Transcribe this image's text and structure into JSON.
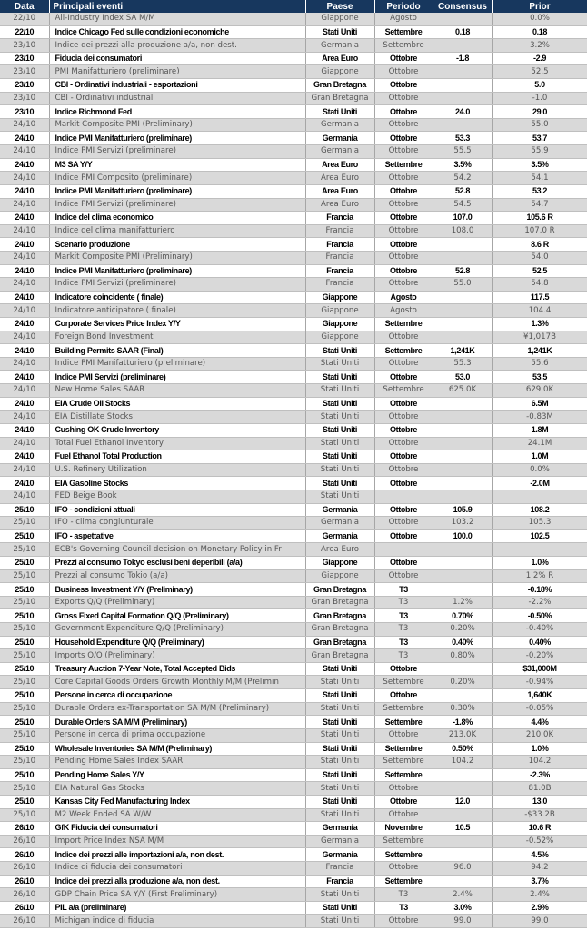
{
  "header": {
    "date": "Data",
    "event": "Principali eventi",
    "country": "Paese",
    "period": "Periodo",
    "consensus": "Consensus",
    "prior": "Prior"
  },
  "colors": {
    "header_bg": "#17375e",
    "shaded_row": "#d9d9d9"
  },
  "rows": [
    {
      "date": "22/10",
      "event": "All-Industry Index SA M/M",
      "country": "Giappone",
      "period": "Agosto",
      "consensus": "",
      "prior": "0.0%"
    },
    {
      "date": "22/10",
      "event": "Indice Chicago Fed sulle condizioni economiche",
      "country": "Stati Uniti",
      "period": "Settembre",
      "consensus": "0.18",
      "prior": "0.18"
    },
    {
      "date": "23/10",
      "event": "Indice dei prezzi alla produzione a/a, non dest.",
      "country": "Germania",
      "period": "Settembre",
      "consensus": "",
      "prior": "3.2%"
    },
    {
      "date": "23/10",
      "event": "Fiducia dei consumatori",
      "country": "Area Euro",
      "period": "Ottobre",
      "consensus": "-1.8",
      "prior": "-2.9"
    },
    {
      "date": "23/10",
      "event": "PMI Manifatturiero (preliminare)",
      "country": "Giappone",
      "period": "Ottobre",
      "consensus": "",
      "prior": "52.5"
    },
    {
      "date": "23/10",
      "event": "CBI - Ordinativi industriali - esportazioni",
      "country": "Gran Bretagna",
      "period": "Ottobre",
      "consensus": "",
      "prior": "5.0"
    },
    {
      "date": "23/10",
      "event": "CBI - Ordinativi industriali",
      "country": "Gran Bretagna",
      "period": "Ottobre",
      "consensus": "",
      "prior": "-1.0"
    },
    {
      "date": "23/10",
      "event": "Indice Richmond Fed",
      "country": "Stati Uniti",
      "period": "Ottobre",
      "consensus": "24.0",
      "prior": "29.0"
    },
    {
      "date": "24/10",
      "event": "Markit Composite PMI  (Preliminary)",
      "country": "Germania",
      "period": "Ottobre",
      "consensus": "",
      "prior": "55.0"
    },
    {
      "date": "24/10",
      "event": "Indice PMI Manifatturiero (preliminare)",
      "country": "Germania",
      "period": "Ottobre",
      "consensus": "53.3",
      "prior": "53.7"
    },
    {
      "date": "24/10",
      "event": "Indice PMI Servizi (preliminare)",
      "country": "Germania",
      "period": "Ottobre",
      "consensus": "55.5",
      "prior": "55.9"
    },
    {
      "date": "24/10",
      "event": "M3 SA Y/Y",
      "country": "Area Euro",
      "period": "Settembre",
      "consensus": "3.5%",
      "prior": "3.5%"
    },
    {
      "date": "24/10",
      "event": "Indice PMI Composito (preliminare)",
      "country": "Area Euro",
      "period": "Ottobre",
      "consensus": "54.2",
      "prior": "54.1"
    },
    {
      "date": "24/10",
      "event": "Indice PMI Manifatturiero (preliminare)",
      "country": "Area Euro",
      "period": "Ottobre",
      "consensus": "52.8",
      "prior": "53.2"
    },
    {
      "date": "24/10",
      "event": "Indice PMI Servizi (preliminare)",
      "country": "Area Euro",
      "period": "Ottobre",
      "consensus": "54.5",
      "prior": "54.7"
    },
    {
      "date": "24/10",
      "event": "Indice del clima economico",
      "country": "Francia",
      "period": "Ottobre",
      "consensus": "107.0",
      "prior": "105.6 R"
    },
    {
      "date": "24/10",
      "event": "Indice del clima manifatturiero",
      "country": "Francia",
      "period": "Ottobre",
      "consensus": "108.0",
      "prior": "107.0 R"
    },
    {
      "date": "24/10",
      "event": "Scenario produzione",
      "country": "Francia",
      "period": "Ottobre",
      "consensus": "",
      "prior": "8.6 R"
    },
    {
      "date": "24/10",
      "event": "Markit Composite PMI  (Preliminary)",
      "country": "Francia",
      "period": "Ottobre",
      "consensus": "",
      "prior": "54.0"
    },
    {
      "date": "24/10",
      "event": "Indice PMI Manifatturiero (preliminare)",
      "country": "Francia",
      "period": "Ottobre",
      "consensus": "52.8",
      "prior": "52.5"
    },
    {
      "date": "24/10",
      "event": "Indice PMI Servizi (preliminare)",
      "country": "Francia",
      "period": "Ottobre",
      "consensus": "55.0",
      "prior": "54.8"
    },
    {
      "date": "24/10",
      "event": "Indicatore coincidente ( finale)",
      "country": "Giappone",
      "period": "Agosto",
      "consensus": "",
      "prior": "117.5"
    },
    {
      "date": "24/10",
      "event": "Indicatore anticipatore ( finale)",
      "country": "Giappone",
      "period": "Agosto",
      "consensus": "",
      "prior": "104.4"
    },
    {
      "date": "24/10",
      "event": "Corporate Services Price Index Y/Y",
      "country": "Giappone",
      "period": "Settembre",
      "consensus": "",
      "prior": "1.3%"
    },
    {
      "date": "24/10",
      "event": "Foreign Bond Investment",
      "country": "Giappone",
      "period": "Ottobre",
      "consensus": "",
      "prior": "¥1,017B"
    },
    {
      "date": "24/10",
      "event": "Building Permits SAAR (Final)",
      "country": "Stati Uniti",
      "period": "Settembre",
      "consensus": "1,241K",
      "prior": "1,241K"
    },
    {
      "date": "24/10",
      "event": "Indice PMI Manifatturiero (preliminare)",
      "country": "Stati Uniti",
      "period": "Ottobre",
      "consensus": "55.3",
      "prior": "55.6"
    },
    {
      "date": "24/10",
      "event": "Indice PMI Servizi (preliminare)",
      "country": "Stati Uniti",
      "period": "Ottobre",
      "consensus": "53.0",
      "prior": "53.5"
    },
    {
      "date": "24/10",
      "event": "New Home Sales SAAR",
      "country": "Stati Uniti",
      "period": "Settembre",
      "consensus": "625.0K",
      "prior": "629.0K"
    },
    {
      "date": "24/10",
      "event": "EIA Crude Oil Stocks",
      "country": "Stati Uniti",
      "period": "Ottobre",
      "consensus": "",
      "prior": "6.5M"
    },
    {
      "date": "24/10",
      "event": "EIA Distillate Stocks",
      "country": "Stati Uniti",
      "period": "Ottobre",
      "consensus": "",
      "prior": "-0.83M"
    },
    {
      "date": "24/10",
      "event": "Cushing OK Crude Inventory",
      "country": "Stati Uniti",
      "period": "Ottobre",
      "consensus": "",
      "prior": "1.8M"
    },
    {
      "date": "24/10",
      "event": "Total Fuel Ethanol Inventory",
      "country": "Stati Uniti",
      "period": "Ottobre",
      "consensus": "",
      "prior": "24.1M"
    },
    {
      "date": "24/10",
      "event": "Fuel Ethanol Total Production",
      "country": "Stati Uniti",
      "period": "Ottobre",
      "consensus": "",
      "prior": "1.0M"
    },
    {
      "date": "24/10",
      "event": "U.S. Refinery Utilization",
      "country": "Stati Uniti",
      "period": "Ottobre",
      "consensus": "",
      "prior": "0.0%"
    },
    {
      "date": "24/10",
      "event": "EIA Gasoline Stocks",
      "country": "Stati Uniti",
      "period": "Ottobre",
      "consensus": "",
      "prior": "-2.0M"
    },
    {
      "date": "24/10",
      "event": "FED Beige Book",
      "country": "Stati Uniti",
      "period": "",
      "consensus": "",
      "prior": ""
    },
    {
      "date": "25/10",
      "event": "IFO - condizioni attuali",
      "country": "Germania",
      "period": "Ottobre",
      "consensus": "105.9",
      "prior": "108.2"
    },
    {
      "date": "25/10",
      "event": "IFO - clima congiunturale",
      "country": "Germania",
      "period": "Ottobre",
      "consensus": "103.2",
      "prior": "105.3"
    },
    {
      "date": "25/10",
      "event": "IFO - aspettative",
      "country": "Germania",
      "period": "Ottobre",
      "consensus": "100.0",
      "prior": "102.5"
    },
    {
      "date": "25/10",
      "event": "ECB's Governing Council decision on Monetary Policy in Fr",
      "country": "Area Euro",
      "period": "",
      "consensus": "",
      "prior": ""
    },
    {
      "date": "25/10",
      "event": "Prezzi al consumo Tokyo esclusi beni deperibili (a/a)",
      "country": "Giappone",
      "period": "Ottobre",
      "consensus": "",
      "prior": "1.0%"
    },
    {
      "date": "25/10",
      "event": "Prezzi al consumo Tokio (a/a)",
      "country": "Giappone",
      "period": "Ottobre",
      "consensus": "",
      "prior": "1.2% R"
    },
    {
      "date": "25/10",
      "event": "Business Investment Y/Y (Preliminary)",
      "country": "Gran Bretagna",
      "period": "T3",
      "consensus": "",
      "prior": "-0.18%"
    },
    {
      "date": "25/10",
      "event": "Exports Q/Q (Preliminary)",
      "country": "Gran Bretagna",
      "period": "T3",
      "consensus": "1.2%",
      "prior": "-2.2%"
    },
    {
      "date": "25/10",
      "event": "Gross Fixed Capital Formation Q/Q (Preliminary)",
      "country": "Gran Bretagna",
      "period": "T3",
      "consensus": "0.70%",
      "prior": "-0.50%"
    },
    {
      "date": "25/10",
      "event": "Government Expenditure  Q/Q (Preliminary)",
      "country": "Gran Bretagna",
      "period": "T3",
      "consensus": "0.20%",
      "prior": "-0.40%"
    },
    {
      "date": "25/10",
      "event": "Household Expenditure Q/Q (Preliminary)",
      "country": "Gran Bretagna",
      "period": "T3",
      "consensus": "0.40%",
      "prior": "0.40%"
    },
    {
      "date": "25/10",
      "event": "Imports Q/Q (Preliminary)",
      "country": "Gran Bretagna",
      "period": "T3",
      "consensus": "0.80%",
      "prior": "-0.20%"
    },
    {
      "date": "25/10",
      "event": "Treasury Auction 7-Year Note, Total Accepted Bids",
      "country": "Stati Uniti",
      "period": "Ottobre",
      "consensus": "",
      "prior": "$31,000M"
    },
    {
      "date": "25/10",
      "event": "Core Capital Goods Orders Growth Monthly M/M (Prelimin",
      "country": "Stati Uniti",
      "period": "Settembre",
      "consensus": "0.20%",
      "prior": "-0.94%"
    },
    {
      "date": "25/10",
      "event": "Persone in cerca di occupazione",
      "country": "Stati Uniti",
      "period": "Ottobre",
      "consensus": "",
      "prior": "1,640K"
    },
    {
      "date": "25/10",
      "event": "Durable Orders ex-Transportation SA M/M (Preliminary)",
      "country": "Stati Uniti",
      "period": "Settembre",
      "consensus": "0.30%",
      "prior": "-0.05%"
    },
    {
      "date": "25/10",
      "event": "Durable Orders SA M/M (Preliminary)",
      "country": "Stati Uniti",
      "period": "Settembre",
      "consensus": "-1.8%",
      "prior": "4.4%"
    },
    {
      "date": "25/10",
      "event": "Persone in cerca di prima occupazione",
      "country": "Stati Uniti",
      "period": "Ottobre",
      "consensus": "213.0K",
      "prior": "210.0K"
    },
    {
      "date": "25/10",
      "event": "Wholesale Inventories SA M/M (Preliminary)",
      "country": "Stati Uniti",
      "period": "Settembre",
      "consensus": "0.50%",
      "prior": "1.0%"
    },
    {
      "date": "25/10",
      "event": "Pending Home Sales Index SAAR",
      "country": "Stati Uniti",
      "period": "Settembre",
      "consensus": "104.2",
      "prior": "104.2"
    },
    {
      "date": "25/10",
      "event": "Pending Home Sales Y/Y",
      "country": "Stati Uniti",
      "period": "Settembre",
      "consensus": "",
      "prior": "-2.3%"
    },
    {
      "date": "25/10",
      "event": "EIA Natural Gas Stocks",
      "country": "Stati Uniti",
      "period": "Ottobre",
      "consensus": "",
      "prior": "81.0B"
    },
    {
      "date": "25/10",
      "event": "Kansas City Fed Manufacturing Index",
      "country": "Stati Uniti",
      "period": "Ottobre",
      "consensus": "12.0",
      "prior": "13.0"
    },
    {
      "date": "25/10",
      "event": "M2 Week Ended SA W/W",
      "country": "Stati Uniti",
      "period": "Ottobre",
      "consensus": "",
      "prior": "-$33.2B"
    },
    {
      "date": "26/10",
      "event": "GfK Fiducia dei consumatori",
      "country": "Germania",
      "period": "Novembre",
      "consensus": "10.5",
      "prior": "10.6 R"
    },
    {
      "date": "26/10",
      "event": "Import Price Index NSA M/M",
      "country": "Germania",
      "period": "Settembre",
      "consensus": "",
      "prior": "-0.52%"
    },
    {
      "date": "26/10",
      "event": "Indice dei prezzi alle importazioni a/a, non dest.",
      "country": "Germania",
      "period": "Settembre",
      "consensus": "",
      "prior": "4.5%"
    },
    {
      "date": "26/10",
      "event": "Indice di fiducia dei consumatori",
      "country": "Francia",
      "period": "Ottobre",
      "consensus": "96.0",
      "prior": "94.2"
    },
    {
      "date": "26/10",
      "event": "Indice dei prezzi alla produzione a/a, non dest.",
      "country": "Francia",
      "period": "Settembre",
      "consensus": "",
      "prior": "3.7%"
    },
    {
      "date": "26/10",
      "event": "GDP Chain Price SA Y/Y (First Preliminary)",
      "country": "Stati Uniti",
      "period": "T3",
      "consensus": "2.4%",
      "prior": "2.4%"
    },
    {
      "date": "26/10",
      "event": "PIL a/a (preliminare)",
      "country": "Stati Uniti",
      "period": "T3",
      "consensus": "3.0%",
      "prior": "2.9%"
    },
    {
      "date": "26/10",
      "event": "Michigan indice di fiducia",
      "country": "Stati Uniti",
      "period": "Ottobre",
      "consensus": "99.0",
      "prior": "99.0"
    }
  ]
}
